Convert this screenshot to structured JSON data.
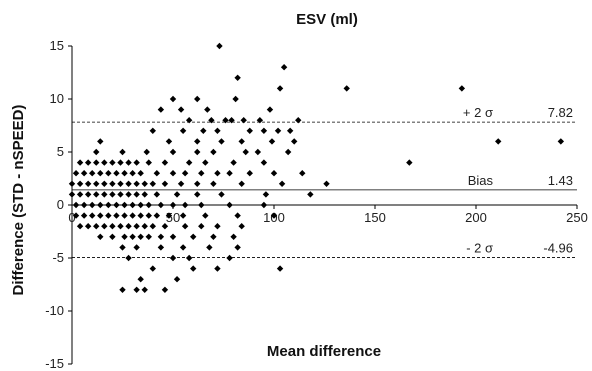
{
  "chart_data": {
    "type": "scatter",
    "title": "ESV (ml)",
    "xlabel": "Mean difference",
    "ylabel": "Difference (STD - nSPEED)",
    "xlim": [
      0,
      250
    ],
    "ylim": [
      -15,
      15
    ],
    "x_ticks": [
      "0",
      "50",
      "100",
      "150",
      "200",
      "250"
    ],
    "y_ticks": [
      "-15",
      "-10",
      "-5",
      "0",
      "5",
      "10",
      "15"
    ],
    "grid": false,
    "legend": "none",
    "marker_color": "#000000",
    "reference_lines": [
      {
        "label": "+ 2 σ",
        "value": 7.82,
        "value_label": "7.82",
        "style": "dashed"
      },
      {
        "label": "Bias",
        "value": 1.43,
        "value_label": "1.43",
        "style": "solid"
      },
      {
        "label": "- 2 σ",
        "value": -4.96,
        "value_label": "-4.96",
        "style": "dashed"
      }
    ],
    "points": [
      [
        73,
        15
      ],
      [
        105,
        13
      ],
      [
        82,
        12
      ],
      [
        103,
        11
      ],
      [
        136,
        11
      ],
      [
        193,
        11
      ],
      [
        50,
        10
      ],
      [
        62,
        10
      ],
      [
        81,
        10
      ],
      [
        98,
        9
      ],
      [
        44,
        9
      ],
      [
        54,
        9
      ],
      [
        67,
        9
      ],
      [
        58,
        8
      ],
      [
        69,
        8
      ],
      [
        76,
        8
      ],
      [
        79,
        8
      ],
      [
        85,
        8
      ],
      [
        93,
        8
      ],
      [
        112,
        8
      ],
      [
        40,
        7
      ],
      [
        55,
        7
      ],
      [
        65,
        7
      ],
      [
        72,
        7
      ],
      [
        88,
        7
      ],
      [
        95,
        7
      ],
      [
        102,
        7
      ],
      [
        108,
        7
      ],
      [
        211,
        6
      ],
      [
        242,
        6
      ],
      [
        14,
        6
      ],
      [
        48,
        6
      ],
      [
        62,
        6
      ],
      [
        74,
        6
      ],
      [
        84,
        6
      ],
      [
        99,
        6
      ],
      [
        110,
        6
      ],
      [
        12,
        5
      ],
      [
        25,
        5
      ],
      [
        37,
        5
      ],
      [
        50,
        5
      ],
      [
        62,
        5
      ],
      [
        70,
        5
      ],
      [
        86,
        5
      ],
      [
        92,
        5
      ],
      [
        107,
        5
      ],
      [
        4,
        4
      ],
      [
        8,
        4
      ],
      [
        12,
        4
      ],
      [
        16,
        4
      ],
      [
        20,
        4
      ],
      [
        24,
        4
      ],
      [
        28,
        4
      ],
      [
        32,
        4
      ],
      [
        38,
        4
      ],
      [
        46,
        4
      ],
      [
        58,
        4
      ],
      [
        66,
        4
      ],
      [
        80,
        4
      ],
      [
        95,
        4
      ],
      [
        167,
        4
      ],
      [
        2,
        3
      ],
      [
        6,
        3
      ],
      [
        10,
        3
      ],
      [
        14,
        3
      ],
      [
        18,
        3
      ],
      [
        22,
        3
      ],
      [
        26,
        3
      ],
      [
        30,
        3
      ],
      [
        34,
        3
      ],
      [
        42,
        3
      ],
      [
        50,
        3
      ],
      [
        56,
        3
      ],
      [
        64,
        3
      ],
      [
        72,
        3
      ],
      [
        78,
        3
      ],
      [
        88,
        3
      ],
      [
        100,
        3
      ],
      [
        114,
        3
      ],
      [
        0,
        2
      ],
      [
        4,
        2
      ],
      [
        8,
        2
      ],
      [
        12,
        2
      ],
      [
        16,
        2
      ],
      [
        20,
        2
      ],
      [
        24,
        2
      ],
      [
        28,
        2
      ],
      [
        32,
        2
      ],
      [
        36,
        2
      ],
      [
        40,
        2
      ],
      [
        46,
        2
      ],
      [
        54,
        2
      ],
      [
        62,
        2
      ],
      [
        70,
        2
      ],
      [
        84,
        2
      ],
      [
        104,
        2
      ],
      [
        126,
        2
      ],
      [
        0,
        1
      ],
      [
        4,
        1
      ],
      [
        8,
        1
      ],
      [
        12,
        1
      ],
      [
        16,
        1
      ],
      [
        20,
        1
      ],
      [
        24,
        1
      ],
      [
        28,
        1
      ],
      [
        32,
        1
      ],
      [
        36,
        1
      ],
      [
        42,
        1
      ],
      [
        52,
        1
      ],
      [
        62,
        1
      ],
      [
        74,
        1
      ],
      [
        96,
        1
      ],
      [
        118,
        1
      ],
      [
        2,
        0
      ],
      [
        6,
        0
      ],
      [
        10,
        0
      ],
      [
        14,
        0
      ],
      [
        18,
        0
      ],
      [
        22,
        0
      ],
      [
        26,
        0
      ],
      [
        30,
        0
      ],
      [
        34,
        0
      ],
      [
        38,
        0
      ],
      [
        44,
        0
      ],
      [
        50,
        0
      ],
      [
        56,
        0
      ],
      [
        64,
        0
      ],
      [
        78,
        0
      ],
      [
        95,
        0
      ],
      [
        2,
        -1
      ],
      [
        6,
        -1
      ],
      [
        10,
        -1
      ],
      [
        14,
        -1
      ],
      [
        18,
        -1
      ],
      [
        22,
        -1
      ],
      [
        26,
        -1
      ],
      [
        30,
        -1
      ],
      [
        34,
        -1
      ],
      [
        38,
        -1
      ],
      [
        42,
        -1
      ],
      [
        48,
        -1
      ],
      [
        55,
        -1
      ],
      [
        66,
        -1
      ],
      [
        82,
        -1
      ],
      [
        100,
        -1
      ],
      [
        4,
        -2
      ],
      [
        8,
        -2
      ],
      [
        12,
        -2
      ],
      [
        16,
        -2
      ],
      [
        20,
        -2
      ],
      [
        24,
        -2
      ],
      [
        28,
        -2
      ],
      [
        32,
        -2
      ],
      [
        36,
        -2
      ],
      [
        40,
        -2
      ],
      [
        46,
        -2
      ],
      [
        56,
        -2
      ],
      [
        64,
        -2
      ],
      [
        72,
        -2
      ],
      [
        84,
        -2
      ],
      [
        14,
        -3
      ],
      [
        20,
        -3
      ],
      [
        26,
        -3
      ],
      [
        30,
        -3
      ],
      [
        34,
        -3
      ],
      [
        38,
        -3
      ],
      [
        44,
        -3
      ],
      [
        50,
        -3
      ],
      [
        60,
        -3
      ],
      [
        70,
        -3
      ],
      [
        80,
        -3
      ],
      [
        25,
        -4
      ],
      [
        32,
        -4
      ],
      [
        44,
        -4
      ],
      [
        55,
        -4
      ],
      [
        68,
        -4
      ],
      [
        82,
        -4
      ],
      [
        28,
        -5
      ],
      [
        50,
        -5
      ],
      [
        58,
        -5
      ],
      [
        78,
        -5
      ],
      [
        40,
        -6
      ],
      [
        60,
        -6
      ],
      [
        72,
        -6
      ],
      [
        103,
        -6
      ],
      [
        34,
        -7
      ],
      [
        52,
        -7
      ],
      [
        25,
        -8
      ],
      [
        32,
        -8
      ],
      [
        36,
        -8
      ],
      [
        46,
        -8
      ]
    ]
  }
}
